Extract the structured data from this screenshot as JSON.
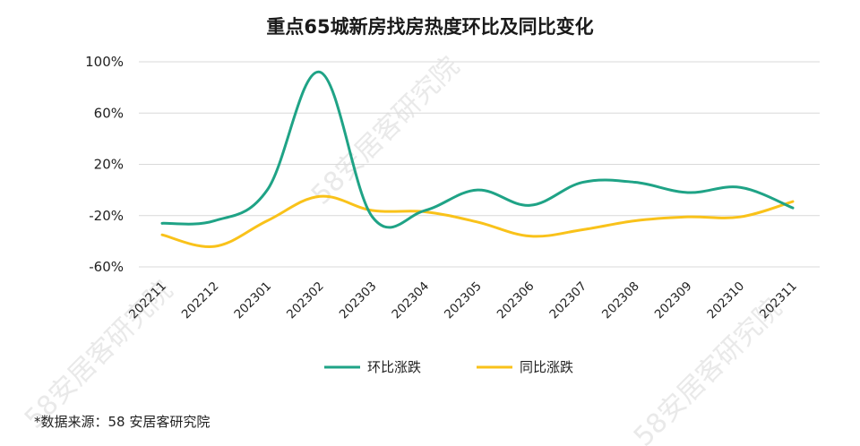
{
  "chart_data": {
    "type": "line",
    "title": "重点65城新房找房热度环比及同比变化",
    "categories": [
      "202211",
      "202212",
      "202301",
      "202302",
      "202303",
      "202304",
      "202305",
      "202306",
      "202307",
      "202308",
      "202309",
      "202310",
      "202311"
    ],
    "y_ticks": [
      "100%",
      "60%",
      "20%",
      "-20%",
      "-60%"
    ],
    "ylim": [
      -60,
      100
    ],
    "grid": true,
    "legend_position": "bottom",
    "series": [
      {
        "name": "环比涨跌",
        "color": "#1fa386",
        "values": [
          -26,
          -24,
          0,
          92,
          -21,
          -16,
          0,
          -12,
          6,
          6,
          -2,
          2,
          -14
        ]
      },
      {
        "name": "同比涨跌",
        "color": "#f9c21a",
        "values": [
          -35,
          -44,
          -24,
          -5,
          -16,
          -17,
          -25,
          -36,
          -31,
          -24,
          -21,
          -21,
          -9
        ]
      }
    ]
  },
  "watermark": "58安居客研究院",
  "source_note": "*数据来源：58 安居客研究院"
}
